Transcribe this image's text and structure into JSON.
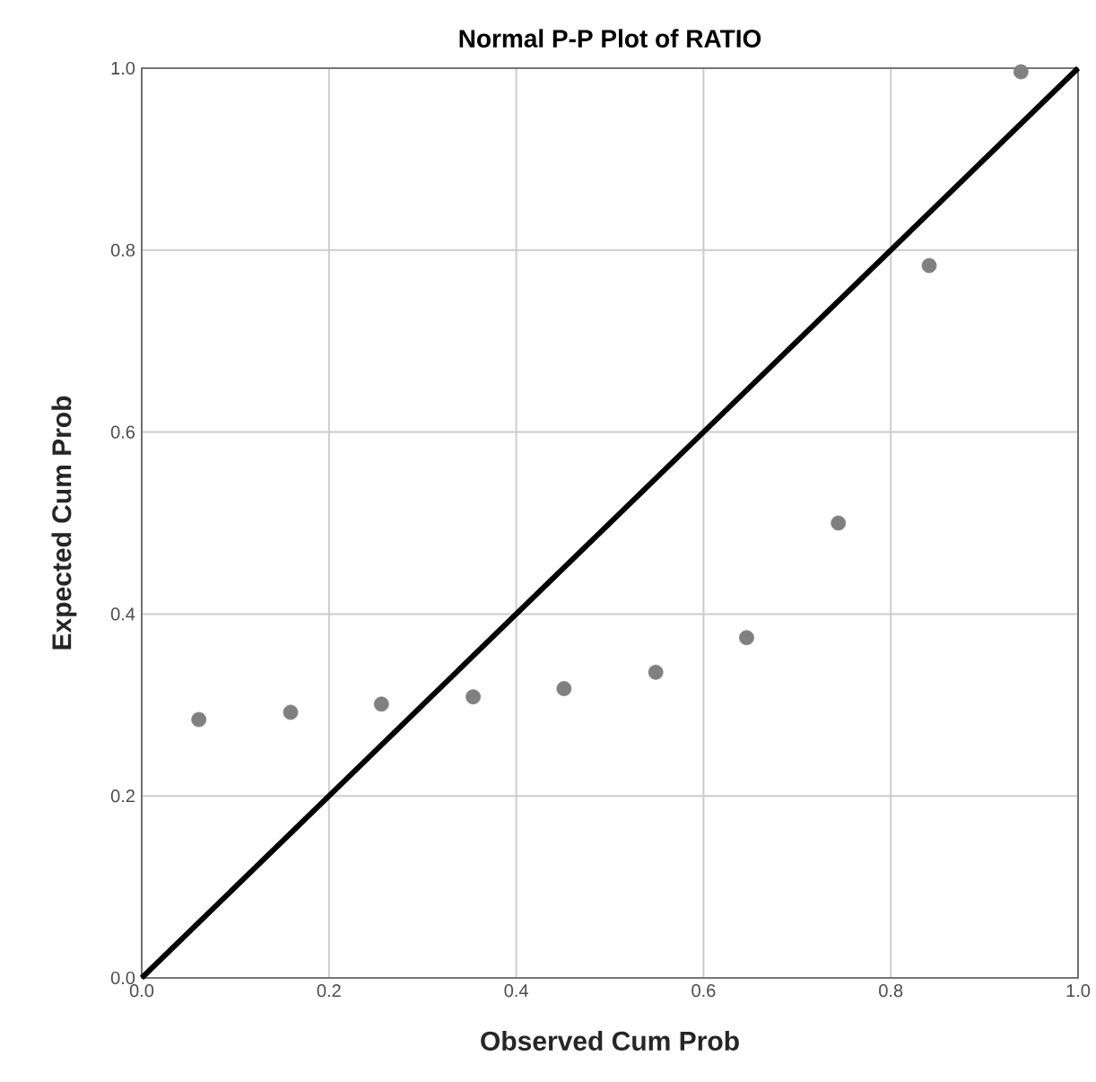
{
  "chart_data": {
    "type": "scatter",
    "title": "Normal P-P Plot of RATIO",
    "xlabel": "Observed Cum Prob",
    "ylabel": "Expected Cum Prob",
    "series": [
      {
        "color": "#808080",
        "x": [
          0.061,
          0.159,
          0.256,
          0.354,
          0.451,
          0.549,
          0.646,
          0.744,
          0.841,
          0.939
        ],
        "values": [
          0.284,
          0.292,
          0.301,
          0.309,
          0.318,
          0.336,
          0.374,
          0.5,
          0.783,
          0.996
        ],
        "marker": "circle"
      },
      {
        "type": "line",
        "color": "#000000",
        "x": [
          0,
          1
        ],
        "values": [
          0,
          1
        ],
        "marker": "none",
        "line_style": "solid"
      }
    ],
    "xlim": [
      0,
      1
    ],
    "ylim": [
      0,
      1
    ],
    "xticks": [
      {
        "value": 0,
        "label": "0.0"
      },
      0.2,
      0.4,
      0.6,
      0.8,
      {
        "value": 1,
        "label": "1.0"
      }
    ],
    "yticks": [
      {
        "value": 0,
        "label": "0.0"
      },
      0.2,
      0.4,
      0.6,
      0.8,
      {
        "value": 1,
        "label": "1.0"
      }
    ],
    "grid": true
  }
}
